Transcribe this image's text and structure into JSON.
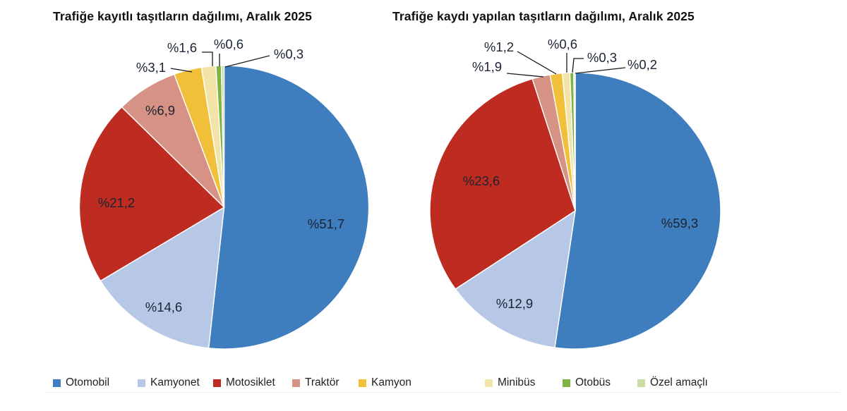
{
  "page": {
    "background": "#ffffff",
    "label_color": "#1b2433",
    "leader_line_color": "#1a1a1a"
  },
  "chart_data": [
    {
      "type": "pie",
      "title": "Trafiğe kayıtlı taşıtların dağılımı, Aralık 2025",
      "unit": "percent",
      "labels": [
        "Otomobil",
        "Kamyonet",
        "Motosiklet",
        "Traktör",
        "Kamyon",
        "Minibüs",
        "Otobüs",
        "Özel amaçlı"
      ],
      "values": [
        51.7,
        14.6,
        21.2,
        6.9,
        3.1,
        1.6,
        0.6,
        0.3
      ],
      "value_labels": [
        "%51,7",
        "%14,6",
        "%21,2",
        "%6,9",
        "%3,1",
        "%1,6",
        "%0,6",
        "%0,3"
      ],
      "colors": [
        "#3E7DBE",
        "#B7C8E6",
        "#BE2B21",
        "#D69284",
        "#F0C03A",
        "#F2E3A6",
        "#7FB442",
        "#CBDDA4"
      ],
      "start_angle": 0,
      "direction": "clockwise",
      "legend_position": "bottom"
    },
    {
      "type": "pie",
      "title": "Trafiğe kaydı yapılan taşıtların dağılımı, Aralık 2025",
      "unit": "percent",
      "labels": [
        "Otomobil",
        "Kamyonet",
        "Motosiklet",
        "Traktör",
        "Kamyon",
        "Minibüs",
        "Otobüs",
        "Özel amaçlı"
      ],
      "values": [
        59.3,
        12.9,
        23.6,
        1.9,
        1.2,
        0.6,
        0.3,
        0.2
      ],
      "value_labels": [
        "%59,3",
        "%12,9",
        "%23,6",
        "%1,9",
        "%1,2",
        "%0,6",
        "%0,3",
        "%0,2"
      ],
      "colors": [
        "#3E7DBE",
        "#B7C8E6",
        "#BE2B21",
        "#D69284",
        "#F0C03A",
        "#F2E3A6",
        "#7FB442",
        "#CBDDA4"
      ],
      "start_angle": 0,
      "direction": "clockwise",
      "legend_position": "bottom"
    }
  ]
}
